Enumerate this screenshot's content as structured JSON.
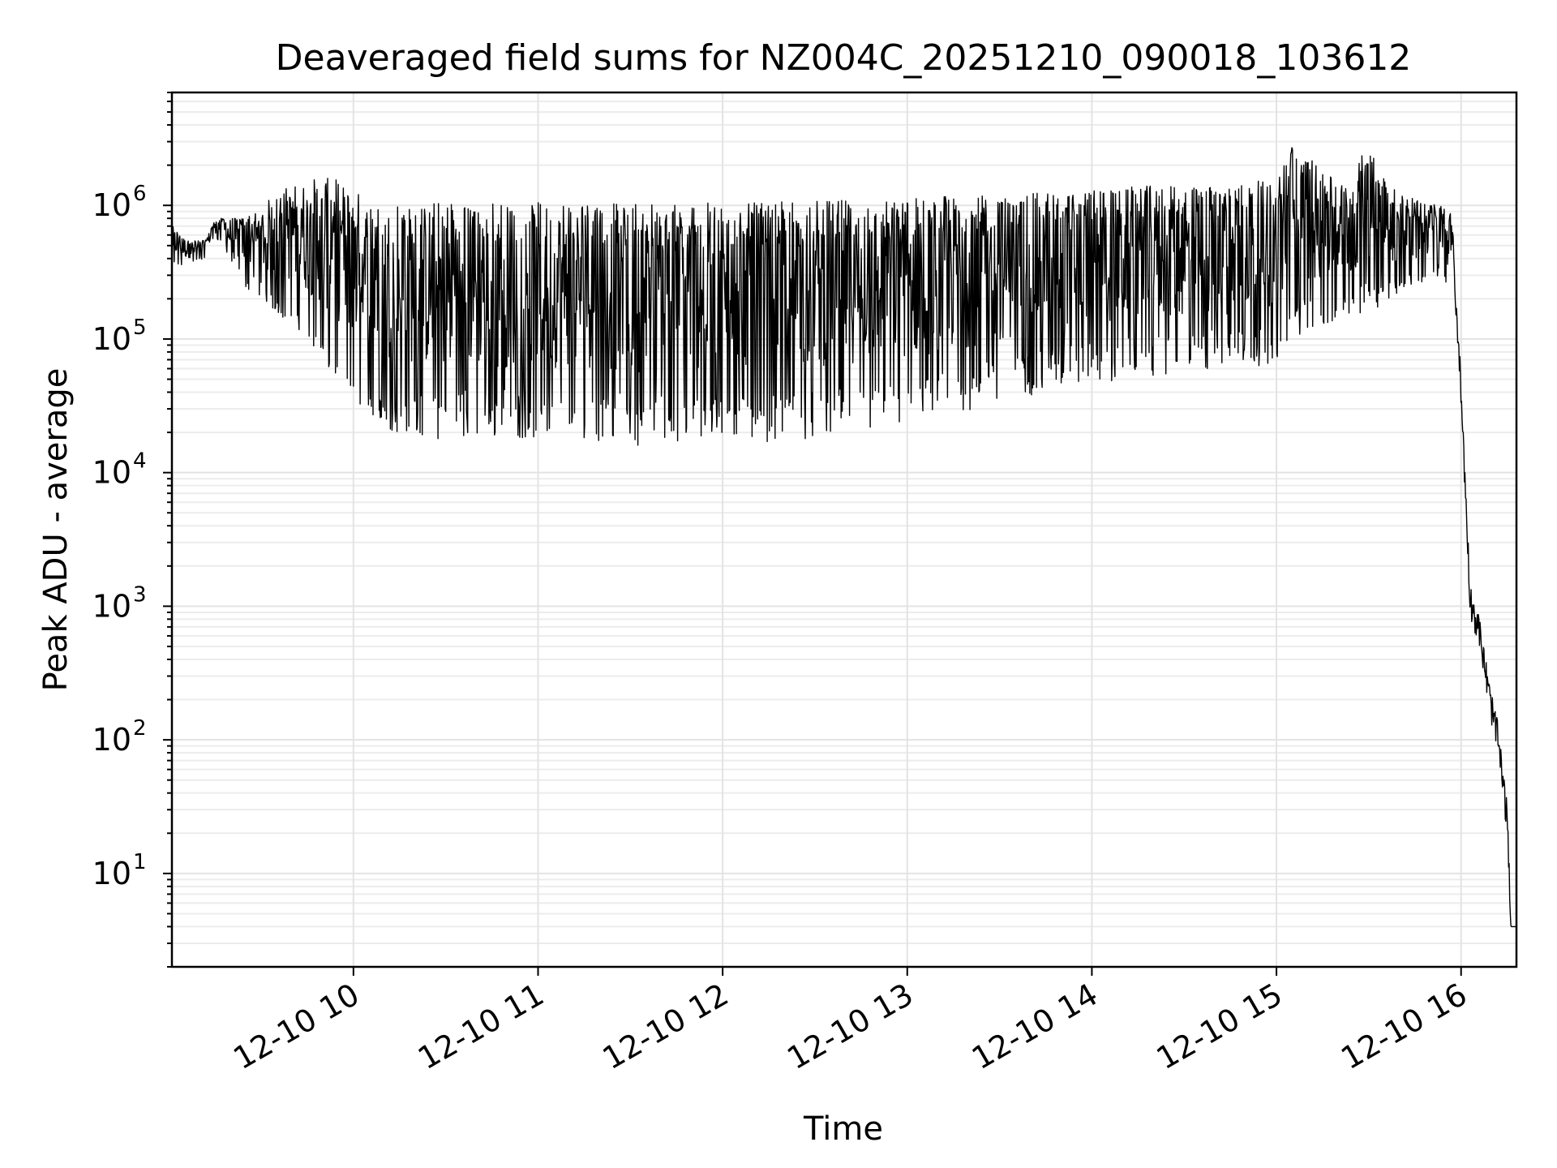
{
  "chart_data": {
    "type": "line",
    "title": "Deaveraged field sums for NZ004C_20251210_090018_103612",
    "xlabel": "Time",
    "ylabel": "Peak ADU - average",
    "yscale": "log",
    "ylim": [
      2,
      7000000.0
    ],
    "xlim_hours": [
      9.0167,
      16.3
    ],
    "grid": true,
    "x_ticks": [
      {
        "hour": 10,
        "label": "12-10 10"
      },
      {
        "hour": 11,
        "label": "12-10 11"
      },
      {
        "hour": 12,
        "label": "12-10 12"
      },
      {
        "hour": 13,
        "label": "12-10 13"
      },
      {
        "hour": 14,
        "label": "12-10 14"
      },
      {
        "hour": 15,
        "label": "12-10 15"
      },
      {
        "hour": 16,
        "label": "12-10 16"
      }
    ],
    "y_ticks": [
      {
        "value": 10,
        "base": "10",
        "exp": "1"
      },
      {
        "value": 100,
        "base": "10",
        "exp": "2"
      },
      {
        "value": 1000,
        "base": "10",
        "exp": "3"
      },
      {
        "value": 10000,
        "base": "10",
        "exp": "4"
      },
      {
        "value": 100000,
        "base": "10",
        "exp": "5"
      },
      {
        "value": 1000000,
        "base": "10",
        "exp": "6"
      }
    ],
    "envelope": {
      "hours": [
        9.02,
        9.1,
        9.2,
        9.25,
        9.4,
        9.5,
        9.6,
        9.7,
        9.8,
        9.9,
        10.0,
        10.1,
        10.2,
        10.3,
        10.4,
        10.5,
        10.75,
        11.0,
        11.25,
        11.5,
        11.75,
        12.0,
        12.25,
        12.5,
        12.75,
        13.0,
        13.25,
        13.5,
        13.75,
        14.0,
        14.25,
        14.5,
        14.75,
        15.0,
        15.1,
        15.25,
        15.4,
        15.5,
        15.6,
        15.75,
        15.9,
        15.95,
        16.0,
        16.05,
        16.1,
        16.15,
        16.2,
        16.25,
        16.27,
        16.3
      ],
      "upper": [
        700000,
        550000,
        550000,
        800000,
        800000,
        1000000,
        1300000,
        1500000,
        1600000,
        1600000,
        1400000,
        1100000,
        1100000,
        1050000,
        1050000,
        1050000,
        1050000,
        1050000,
        1050000,
        1050000,
        1050000,
        1050000,
        1050000,
        1100000,
        1100000,
        1150000,
        1200000,
        1200000,
        1250000,
        1300000,
        1400000,
        1400000,
        1400000,
        1600000,
        3500000,
        1700000,
        1500000,
        3200000,
        1500000,
        1100000,
        1000000,
        850000,
        60000,
        1500,
        800,
        300,
        150,
        40,
        4,
        4
      ],
      "lower": [
        350000,
        350000,
        400000,
        600000,
        250000,
        200000,
        150000,
        120000,
        80000,
        50000,
        35000,
        25000,
        20000,
        20000,
        18000,
        17000,
        18000,
        18000,
        18000,
        16000,
        16000,
        18000,
        17000,
        18000,
        20000,
        22000,
        26000,
        33000,
        40000,
        45000,
        50000,
        55000,
        60000,
        65000,
        100000,
        120000,
        150000,
        150000,
        200000,
        250000,
        300000,
        200000,
        25000,
        800,
        500,
        150,
        60,
        15,
        4,
        4
      ],
      "typical": [
        450000,
        450000,
        500000,
        700000,
        600000,
        450000,
        300000,
        250000,
        200000,
        150000,
        100000,
        80000,
        100000,
        150000,
        200000,
        250000,
        250000,
        250000,
        200000,
        200000,
        180000,
        180000,
        180000,
        180000,
        200000,
        220000,
        250000,
        300000,
        350000,
        400000,
        420000,
        450000,
        450000,
        500000,
        800000,
        500000,
        450000,
        1000000,
        450000,
        500000,
        800000,
        700000,
        40000,
        1100,
        650,
        220,
        100,
        25,
        4,
        4
      ]
    }
  }
}
